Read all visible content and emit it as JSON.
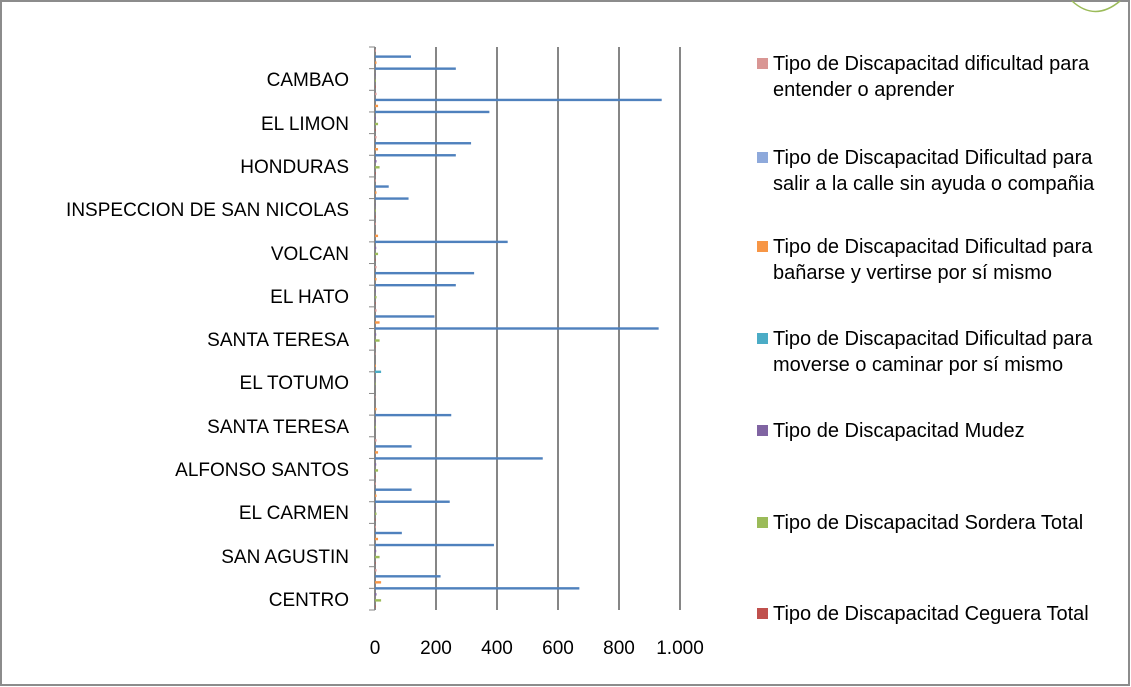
{
  "chart_data": {
    "type": "bar",
    "orientation": "horizontal",
    "categories": [
      "CENTRO",
      "SAN AGUSTIN",
      "EL CARMEN",
      "ALFONSO SANTOS",
      "SANTA TERESA",
      "EL TOTUMO",
      "SANTA TERESA",
      "EL HATO",
      "VOLCAN",
      "INSPECCION DE SAN NICOLAS",
      "HONDURAS",
      "EL LIMON",
      "CAMBAO"
    ],
    "category_order": "bottom-to-top",
    "series": [
      {
        "name": "Tipo de Discapacitad Ceguera Total",
        "color": "#C0504D",
        "values": [
          2,
          1,
          1,
          1,
          0,
          0,
          1,
          1,
          1,
          1,
          2,
          2,
          1
        ]
      },
      {
        "name": "Tipo de Discapacitad Sordera Total",
        "color": "#9BBB59",
        "values": [
          20,
          15,
          5,
          10,
          3,
          2,
          15,
          5,
          10,
          3,
          15,
          10,
          3
        ]
      },
      {
        "name": "Tipo de Discapacitad Mudez",
        "color": "#8064A2",
        "values": [
          5,
          4,
          2,
          4,
          1,
          1,
          4,
          2,
          4,
          1,
          5,
          3,
          1
        ]
      },
      {
        "name": "Tipo de Discapacitad Dificultad para moverse o caminar por sí mismo",
        "color": "#4BACC6",
        "values": [
          670,
          390,
          245,
          550,
          250,
          20,
          930,
          265,
          435,
          110,
          265,
          375,
          265
        ]
      },
      {
        "name": "Tipo de Discapacitad Dificultad para bañarse y vertirse por sí mismo",
        "color": "#F79646",
        "values": [
          20,
          10,
          5,
          10,
          5,
          3,
          15,
          5,
          10,
          5,
          10,
          10,
          5
        ]
      },
      {
        "name": "Tipo de Discapacitad Dificultad para salir a la calle sin ayuda o compañia",
        "color": "#8EA9DB",
        "values": [
          215,
          88,
          120,
          120,
          0,
          0,
          195,
          325,
          0,
          45,
          315,
          940,
          118
        ]
      },
      {
        "name": "Tipo de Discapacitad dificultad para entender o aprender",
        "color": "#D99694",
        "values": [
          5,
          3,
          3,
          5,
          1,
          1,
          5,
          5,
          3,
          3,
          5,
          5,
          3
        ]
      }
    ],
    "x_ticks": [
      "0",
      "200",
      "400",
      "600",
      "800",
      "1.000"
    ],
    "xlim": [
      0,
      1000
    ],
    "grid": "vertical",
    "legend_position": "right",
    "bar_color": "#4F81BD"
  }
}
